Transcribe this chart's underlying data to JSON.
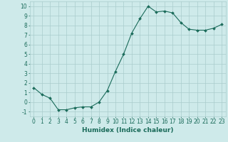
{
  "x": [
    0,
    1,
    2,
    3,
    4,
    5,
    6,
    7,
    8,
    9,
    10,
    11,
    12,
    13,
    14,
    15,
    16,
    17,
    18,
    19,
    20,
    21,
    22,
    23
  ],
  "y": [
    1.5,
    0.8,
    0.4,
    -0.8,
    -0.8,
    -0.6,
    -0.5,
    -0.5,
    0.0,
    1.2,
    3.2,
    5.0,
    7.2,
    8.7,
    10.0,
    9.4,
    9.5,
    9.3,
    8.3,
    7.6,
    7.5,
    7.5,
    7.7,
    8.1
  ],
  "line_color": "#1a6b5a",
  "marker": "D",
  "marker_size": 2.0,
  "bg_color": "#ceeaea",
  "grid_color": "#aacccc",
  "xlabel": "Humidex (Indice chaleur)",
  "xlim": [
    -0.5,
    23.5
  ],
  "ylim": [
    -1.5,
    10.5
  ],
  "yticks": [
    -1,
    0,
    1,
    2,
    3,
    4,
    5,
    6,
    7,
    8,
    9,
    10
  ],
  "xticks": [
    0,
    1,
    2,
    3,
    4,
    5,
    6,
    7,
    8,
    9,
    10,
    11,
    12,
    13,
    14,
    15,
    16,
    17,
    18,
    19,
    20,
    21,
    22,
    23
  ],
  "tick_fontsize": 5.5,
  "xlabel_fontsize": 6.5,
  "linewidth": 0.8
}
